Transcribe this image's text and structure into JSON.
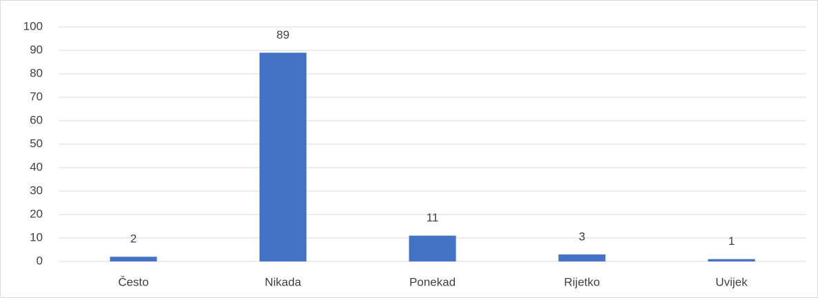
{
  "chart_data": {
    "type": "bar",
    "categories": [
      "Često",
      "Nikada",
      "Ponekad",
      "Rijetko",
      "Uvijek"
    ],
    "values": [
      2,
      89,
      11,
      3,
      1
    ],
    "color": "#4472c4",
    "ylim": [
      0,
      100
    ],
    "yticks": [
      0,
      10,
      20,
      30,
      40,
      50,
      60,
      70,
      80,
      90,
      100
    ],
    "grid": true,
    "data_labels": true
  }
}
